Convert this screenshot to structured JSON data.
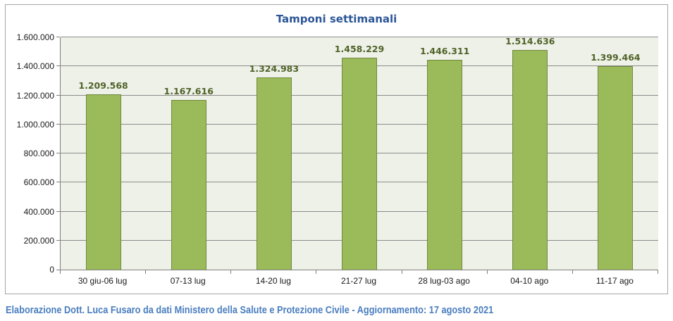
{
  "chart_data": {
    "type": "bar",
    "title": "Tamponi settimanali",
    "categories": [
      "30 giu-06 lug",
      "07-13 lug",
      "14-20 lug",
      "21-27 lug",
      "28 lug-03 ago",
      "04-10 ago",
      "11-17 ago"
    ],
    "values": [
      1209568,
      1167616,
      1324983,
      1458229,
      1446311,
      1514636,
      1399464
    ],
    "value_labels": [
      "1.209.568",
      "1.167.616",
      "1.324.983",
      "1.458.229",
      "1.446.311",
      "1.514.636",
      "1.399.464"
    ],
    "xlabel": "",
    "ylabel": "",
    "ylim": [
      0,
      1600000
    ],
    "y_ticks": {
      "values": [
        0,
        200000,
        400000,
        600000,
        800000,
        1000000,
        1200000,
        1400000,
        1600000
      ],
      "labels": [
        "0",
        "200.000",
        "400.000",
        "600.000",
        "800.000",
        "1.000.000",
        "1.200.000",
        "1.400.000",
        "1.600.000"
      ]
    },
    "grid": "horizontal",
    "legend": "none",
    "colors": {
      "bar_fill": "#9bba59",
      "bar_border": "#72893e",
      "plot_background": "#eef1e8",
      "gridline": "#8c8c8c",
      "axis": "#7f7f7f",
      "title": "#2c5697",
      "data_label": "#4f6228",
      "frame_border": "#a6a6a6",
      "footer": "#4a7ebf"
    }
  },
  "footer": {
    "text": "Elaborazione Dott. Luca Fusaro da dati Ministero della Salute e Protezione Civile - Aggiornamento: 17 agosto 2021"
  }
}
